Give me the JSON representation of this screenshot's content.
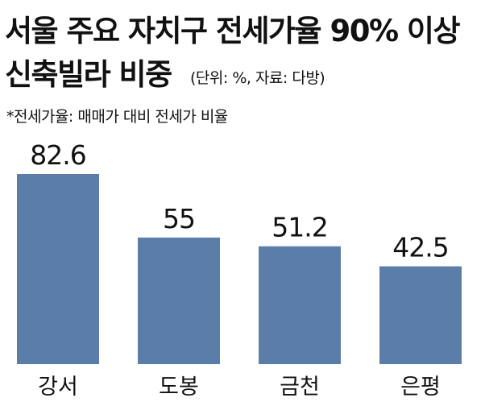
{
  "title_line1": "서울 주요 자치구 전세가율 90% 이상",
  "title_line2": "신축빌라 비중",
  "source": "(단위: %, 자료: 다방)",
  "note": "*전세가율: 매매가 대비 전세가 비율",
  "colors": {
    "bar": "#5b7ea9",
    "text": "#111111",
    "background": "#ffffff"
  },
  "chart_data": {
    "type": "bar",
    "title": "서울 주요 자치구 전세가율 90% 이상 신축빌라 비중",
    "unit": "%",
    "categories": [
      "강서",
      "도봉",
      "금천",
      "은평"
    ],
    "values": [
      82.6,
      55,
      51.2,
      42.5
    ],
    "value_labels": [
      "82.6",
      "55",
      "51.2",
      "42.5"
    ],
    "ylim": [
      0,
      82.6
    ],
    "grid": false,
    "legend": "none"
  }
}
